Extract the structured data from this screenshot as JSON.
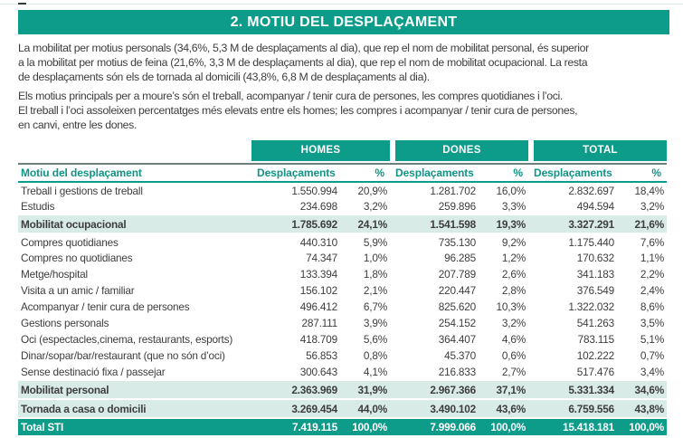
{
  "header": {
    "title": "2. MOTIU DEL DESPLAÇAMENT"
  },
  "intro": {
    "paragraph1": "La mobilitat per motius personals (34,6%, 5,3 M de desplaçaments al dia), que rep el nom de mobilitat personal, és superior\na la mobilitat per motius de feina (21,6%, 3,3 M de desplaçaments al dia), que rep el nom de mobilitat ocupacional. La resta\nde desplaçaments són els de tornada al domicili (43,8%, 6,8 M de desplaçaments al dia).",
    "paragraph2": "Els motius principals per a moure’s són el treball, acompanyar / tenir cura de persones, les compres quotidianes i l’oci.\nEl treball i l’oci assoleixen percentatges més elevats entre els homes; les compres i acompanyar / tenir cura de persones,\nen canvi, entre les dones."
  },
  "table": {
    "col_label": "Motiu del desplaçament",
    "groups": [
      "HOMES",
      "DONES",
      "TOTAL"
    ],
    "sub_headers": [
      "Desplaçaments",
      "%"
    ],
    "rows": [
      {
        "label": "Treball i gestions de treball",
        "style": "normal",
        "values": [
          "1.550.994",
          "20,9%",
          "1.281.702",
          "16,0%",
          "2.832.697",
          "18,4%"
        ]
      },
      {
        "label": "Estudis",
        "style": "normal",
        "values": [
          "234.698",
          "3,2%",
          "259.896",
          "3,3%",
          "494.594",
          "3,2%"
        ]
      },
      {
        "label": "Mobilitat ocupacional",
        "style": "subtotal",
        "values": [
          "1.785.692",
          "24,1%",
          "1.541.598",
          "19,3%",
          "3.327.291",
          "21,6%"
        ]
      },
      {
        "label": "Compres quotidianes",
        "style": "normal",
        "values": [
          "440.310",
          "5,9%",
          "735.130",
          "9,2%",
          "1.175.440",
          "7,6%"
        ]
      },
      {
        "label": "Compres no quotidianes",
        "style": "normal",
        "values": [
          "74.347",
          "1,0%",
          "96.285",
          "1,2%",
          "170.632",
          "1,1%"
        ]
      },
      {
        "label": "Metge/hospital",
        "style": "normal",
        "values": [
          "133.394",
          "1,8%",
          "207.789",
          "2,6%",
          "341.183",
          "2,2%"
        ]
      },
      {
        "label": "Visita a un amic / familiar",
        "style": "normal",
        "values": [
          "156.102",
          "2,1%",
          "220.447",
          "2,8%",
          "376.549",
          "2,4%"
        ]
      },
      {
        "label": "Acompanyar / tenir cura de persones",
        "style": "normal",
        "values": [
          "496.412",
          "6,7%",
          "825.620",
          "10,3%",
          "1.322.032",
          "8,6%"
        ]
      },
      {
        "label": "Gestions personals",
        "style": "normal",
        "values": [
          "287.111",
          "3,9%",
          "254.152",
          "3,2%",
          "541.263",
          "3,5%"
        ]
      },
      {
        "label": "Oci (espectacles,cinema, restaurants, esports)",
        "style": "normal",
        "values": [
          "418.709",
          "5,6%",
          "364.407",
          "4,6%",
          "783.115",
          "5,1%"
        ]
      },
      {
        "label": "Dinar/sopar/bar/restaurant (que no són d’oci)",
        "style": "normal",
        "values": [
          "56.853",
          "0,8%",
          "45.370",
          "0,6%",
          "102.222",
          "0,7%"
        ]
      },
      {
        "label": "Sense destinació fixa / passejar",
        "style": "normal",
        "values": [
          "300.643",
          "4,1%",
          "216.833",
          "2,7%",
          "517.476",
          "3,4%"
        ]
      },
      {
        "label": "Mobilitat personal",
        "style": "subtotal",
        "values": [
          "2.363.969",
          "31,9%",
          "2.967.366",
          "37,1%",
          "5.331.334",
          "34,6%"
        ]
      },
      {
        "label": "Tornada a casa o domicili",
        "style": "subtotal",
        "values": [
          "3.269.454",
          "44,0%",
          "3.490.102",
          "43,6%",
          "6.759.556",
          "43,8%"
        ]
      },
      {
        "label": "Total STI",
        "style": "total",
        "values": [
          "7.419.115",
          "100,0%",
          "7.999.066",
          "100,0%",
          "15.418.181",
          "100,0%"
        ]
      }
    ]
  },
  "colors": {
    "accent_teal": "#0d9b8a",
    "row_highlight": "#d8ebe7",
    "body_text": "#3d3d3d"
  }
}
